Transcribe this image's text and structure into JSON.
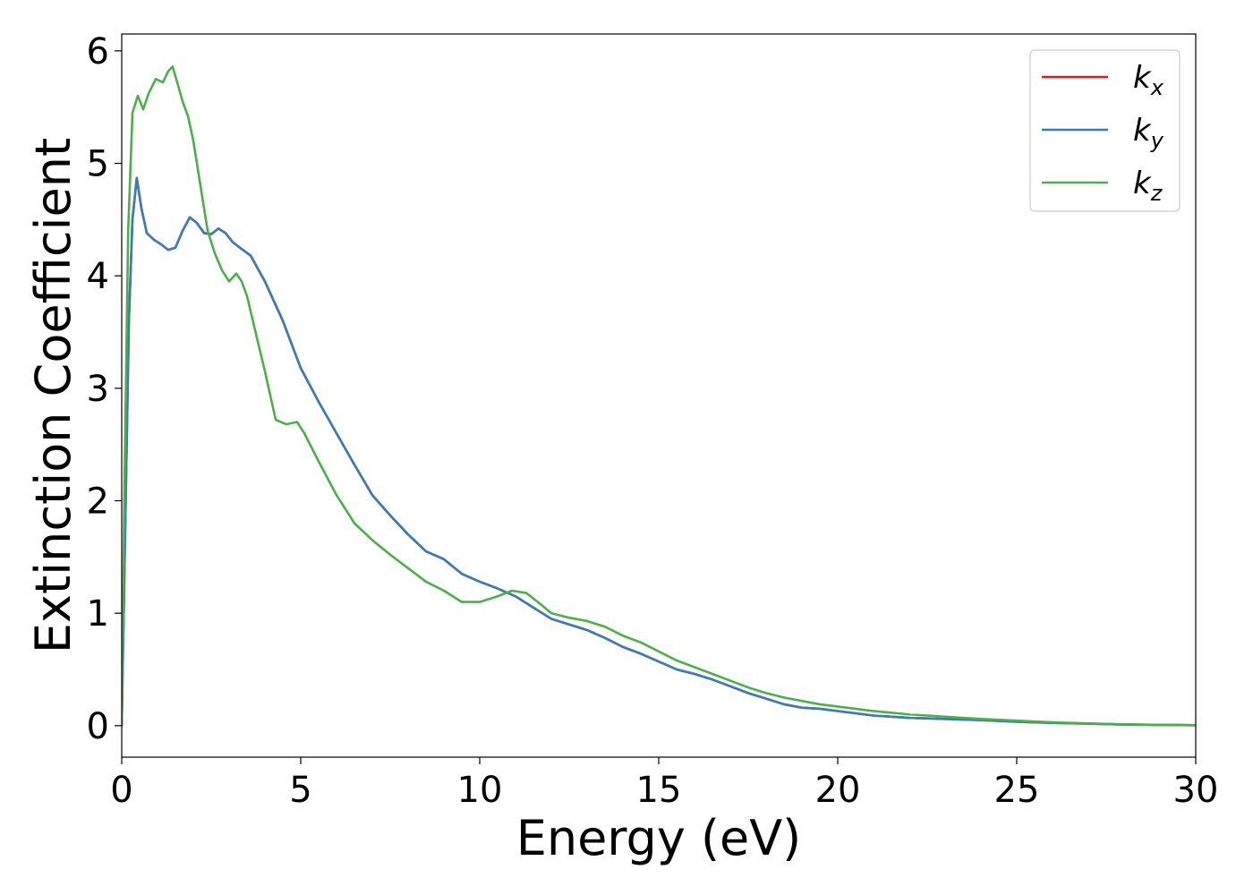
{
  "chart_data": {
    "type": "line",
    "xlabel": "Energy (eV)",
    "ylabel": "Extinction Coefficient",
    "xlim": [
      0,
      30
    ],
    "ylim": [
      -0.28,
      6.15
    ],
    "xticks": [
      0,
      5,
      10,
      15,
      20,
      25,
      30
    ],
    "yticks": [
      0,
      1,
      2,
      3,
      4,
      5,
      6
    ],
    "grid": false,
    "legend_position": "top-right",
    "series": [
      {
        "name": "k_x",
        "label_base": "k",
        "label_sub": "x",
        "color": "#e41a1c",
        "x": [
          0,
          0.1,
          0.2,
          0.3,
          0.42,
          0.55,
          0.7,
          0.9,
          1.1,
          1.3,
          1.5,
          1.7,
          1.9,
          2.1,
          2.3,
          2.5,
          2.7,
          2.9,
          3.1,
          3.3,
          3.6,
          4.0,
          4.5,
          5.0,
          5.5,
          6.0,
          6.5,
          7.0,
          7.5,
          8.0,
          8.5,
          9.0,
          9.5,
          10.0,
          10.5,
          11.0,
          11.5,
          12.0,
          12.5,
          13.0,
          13.5,
          14.0,
          14.5,
          15.0,
          15.5,
          16.0,
          16.5,
          17.0,
          17.5,
          18.0,
          18.5,
          19.0,
          19.5,
          20.0,
          20.5,
          21.0,
          22.0,
          23.0,
          24.0,
          25.0,
          26.0,
          27.0,
          28.0,
          29.0,
          30.0
        ],
        "y": [
          0,
          1.8,
          3.6,
          4.5,
          4.87,
          4.6,
          4.38,
          4.32,
          4.28,
          4.23,
          4.25,
          4.4,
          4.52,
          4.47,
          4.38,
          4.37,
          4.42,
          4.38,
          4.3,
          4.25,
          4.18,
          3.95,
          3.6,
          3.18,
          2.88,
          2.6,
          2.32,
          2.05,
          1.87,
          1.7,
          1.55,
          1.48,
          1.35,
          1.28,
          1.22,
          1.15,
          1.05,
          0.95,
          0.9,
          0.85,
          0.78,
          0.7,
          0.64,
          0.57,
          0.5,
          0.46,
          0.41,
          0.35,
          0.29,
          0.24,
          0.19,
          0.16,
          0.15,
          0.13,
          0.11,
          0.09,
          0.07,
          0.06,
          0.05,
          0.035,
          0.025,
          0.018,
          0.01,
          0.007,
          0.004
        ]
      },
      {
        "name": "k_y",
        "label_base": "k",
        "label_sub": "y",
        "color": "#377eb8",
        "x": [
          0,
          0.1,
          0.2,
          0.3,
          0.42,
          0.55,
          0.7,
          0.9,
          1.1,
          1.3,
          1.5,
          1.7,
          1.9,
          2.1,
          2.3,
          2.5,
          2.7,
          2.9,
          3.1,
          3.3,
          3.6,
          4.0,
          4.5,
          5.0,
          5.5,
          6.0,
          6.5,
          7.0,
          7.5,
          8.0,
          8.5,
          9.0,
          9.5,
          10.0,
          10.5,
          11.0,
          11.5,
          12.0,
          12.5,
          13.0,
          13.5,
          14.0,
          14.5,
          15.0,
          15.5,
          16.0,
          16.5,
          17.0,
          17.5,
          18.0,
          18.5,
          19.0,
          19.5,
          20.0,
          20.5,
          21.0,
          22.0,
          23.0,
          24.0,
          25.0,
          26.0,
          27.0,
          28.0,
          29.0,
          30.0
        ],
        "y": [
          0,
          1.8,
          3.6,
          4.5,
          4.87,
          4.6,
          4.38,
          4.32,
          4.28,
          4.23,
          4.25,
          4.4,
          4.52,
          4.47,
          4.38,
          4.37,
          4.42,
          4.38,
          4.3,
          4.25,
          4.18,
          3.95,
          3.6,
          3.18,
          2.88,
          2.6,
          2.32,
          2.05,
          1.87,
          1.7,
          1.55,
          1.48,
          1.35,
          1.28,
          1.22,
          1.15,
          1.05,
          0.95,
          0.9,
          0.85,
          0.78,
          0.7,
          0.64,
          0.57,
          0.5,
          0.46,
          0.41,
          0.35,
          0.29,
          0.24,
          0.19,
          0.16,
          0.15,
          0.13,
          0.11,
          0.09,
          0.07,
          0.06,
          0.05,
          0.035,
          0.025,
          0.018,
          0.01,
          0.007,
          0.004
        ]
      },
      {
        "name": "k_z",
        "label_base": "k",
        "label_sub": "z",
        "color": "#4daf4a",
        "x": [
          0,
          0.08,
          0.18,
          0.3,
          0.45,
          0.6,
          0.75,
          0.95,
          1.15,
          1.3,
          1.42,
          1.55,
          1.7,
          1.85,
          2.0,
          2.2,
          2.4,
          2.6,
          2.8,
          3.0,
          3.2,
          3.35,
          3.5,
          3.7,
          4.0,
          4.3,
          4.6,
          4.9,
          5.1,
          5.5,
          6.0,
          6.5,
          7.0,
          7.5,
          8.0,
          8.5,
          9.0,
          9.5,
          10.0,
          10.5,
          10.9,
          11.3,
          11.7,
          12.0,
          12.5,
          13.0,
          13.5,
          14.0,
          14.5,
          15.0,
          15.5,
          16.0,
          16.5,
          17.0,
          17.5,
          18.0,
          18.5,
          19.0,
          19.5,
          20.0,
          20.5,
          21.0,
          22.0,
          23.0,
          24.0,
          25.0,
          26.0,
          27.0,
          28.0,
          29.0,
          30.0
        ],
        "y": [
          0,
          2.2,
          4.4,
          5.45,
          5.6,
          5.48,
          5.62,
          5.75,
          5.72,
          5.82,
          5.86,
          5.72,
          5.55,
          5.42,
          5.2,
          4.8,
          4.4,
          4.2,
          4.05,
          3.95,
          4.02,
          3.95,
          3.82,
          3.55,
          3.15,
          2.72,
          2.68,
          2.7,
          2.6,
          2.35,
          2.05,
          1.8,
          1.65,
          1.52,
          1.4,
          1.28,
          1.2,
          1.1,
          1.1,
          1.15,
          1.2,
          1.18,
          1.08,
          1.0,
          0.96,
          0.93,
          0.88,
          0.8,
          0.74,
          0.66,
          0.58,
          0.52,
          0.46,
          0.4,
          0.34,
          0.29,
          0.25,
          0.22,
          0.19,
          0.17,
          0.15,
          0.13,
          0.1,
          0.08,
          0.06,
          0.045,
          0.03,
          0.02,
          0.012,
          0.007,
          0.004
        ]
      }
    ]
  }
}
